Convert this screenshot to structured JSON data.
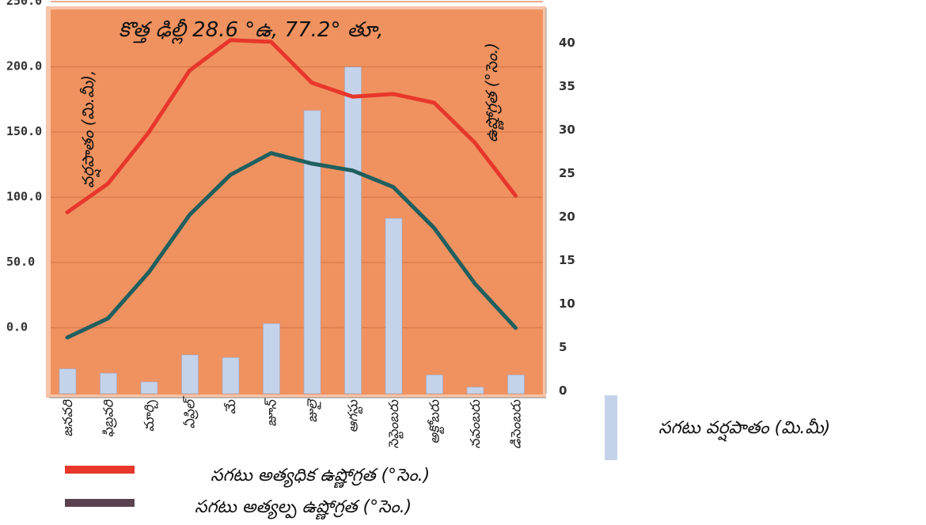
{
  "chart_data": {
    "type": "bar+line",
    "title": "కొత్త ఢిల్లీ  28.6 °ఉ, 77.2° తూ,",
    "categories": [
      "జనవరి",
      "ఫిబ్రవరి",
      "మార్చి",
      "ఏప్రిల్",
      "మే",
      "జూన్",
      "జులై",
      "ఆగస్టు",
      "సెప్టెంబరు",
      "అక్టోబరు",
      "నవంబరు",
      "డిసెంబరు"
    ],
    "left_axis": {
      "label": "వర్షపాతం (మి.మీ),",
      "ticks": [
        "0.0",
        "50.0",
        "100.0",
        "150.0",
        "200.0",
        "250.0"
      ],
      "range": [
        -50,
        250
      ]
    },
    "right_axis": {
      "label": "ఉష్ణోగ్రత (°సెం.)",
      "ticks": [
        "0",
        "5",
        "10",
        "15",
        "20",
        "25",
        "30",
        "35",
        "40"
      ],
      "range": [
        0,
        44
      ]
    },
    "series": [
      {
        "name": "సగటు వర్షపాతం (మి.మీ)",
        "kind": "bar",
        "axis": "left",
        "color": "#c5d3ea",
        "values": [
          2.5,
          2,
          1,
          4.1,
          3.8,
          7.7,
          32.2,
          37.2,
          19.8,
          1.8,
          0.4,
          1.8
        ]
      },
      {
        "name": "సగటు అత్యధిక ఉష్ణోగ్రత (°సెం.)",
        "kind": "line",
        "axis": "right",
        "color": "#e8372a",
        "values": [
          20.5,
          23.8,
          29.7,
          36.8,
          40.3,
          40.1,
          35.4,
          33.8,
          34.1,
          33.1,
          28.5,
          22.4
        ]
      },
      {
        "name": "సగటు అత్యల్ప ఉష్ణోగ్రత (°సెం.)",
        "kind": "line",
        "axis": "right",
        "color": "#1f5f5f",
        "values": [
          6.1,
          8.3,
          13.6,
          20.2,
          24.8,
          27.3,
          26.1,
          25.3,
          23.4,
          18.7,
          12.3,
          7.2
        ]
      }
    ],
    "plot_background": "#ef9260",
    "grid": true
  },
  "legend": {
    "items": [
      {
        "label": "సగటు వర్షపాతం (మి.మీ)",
        "color": "#c5d3ea"
      },
      {
        "label": "సగటు అత్యధిక ఉష్ణోగ్రత (°సెం.)",
        "color": "#e8372a"
      },
      {
        "label": "సగటు అత్యల్ప ఉష్ణోగ్రత (°సెం.)",
        "color": "#5b4251"
      }
    ]
  }
}
